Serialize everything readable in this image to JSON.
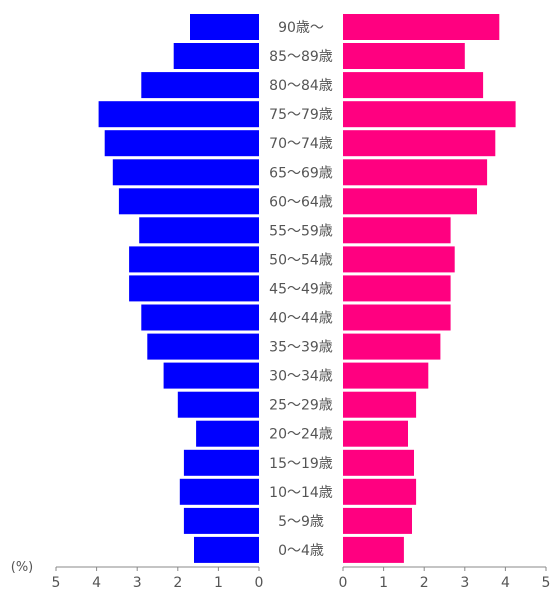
{
  "chart_data": {
    "type": "bar",
    "orientation": "horizontal",
    "layout": "population-pyramid",
    "unit": "(%)",
    "categories": [
      "90歳〜",
      "85〜89歳",
      "80〜84歳",
      "75〜79歳",
      "70〜74歳",
      "65〜69歳",
      "60〜64歳",
      "55〜59歳",
      "50〜54歳",
      "45〜49歳",
      "40〜44歳",
      "35〜39歳",
      "30〜34歳",
      "25〜29歳",
      "20〜24歳",
      "15〜19歳",
      "10〜14歳",
      "5〜9歳",
      "0〜4歳"
    ],
    "series": [
      {
        "side": "left",
        "color": "#0000ff",
        "values": [
          1.7,
          2.1,
          2.9,
          3.95,
          3.8,
          3.6,
          3.45,
          2.95,
          3.2,
          3.2,
          2.9,
          2.75,
          2.35,
          2.0,
          1.55,
          1.85,
          1.95,
          1.85,
          1.6
        ]
      },
      {
        "side": "right",
        "color": "#ff0080",
        "values": [
          3.85,
          3.0,
          3.45,
          4.25,
          3.75,
          3.55,
          3.3,
          2.65,
          2.75,
          2.65,
          2.65,
          2.4,
          2.1,
          1.8,
          1.6,
          1.75,
          1.8,
          1.7,
          1.5
        ]
      }
    ],
    "xlim": [
      0,
      5
    ],
    "left_ticks": [
      "5",
      "4",
      "3",
      "2",
      "1",
      "0"
    ],
    "right_ticks": [
      "0",
      "1",
      "2",
      "3",
      "4",
      "5"
    ],
    "grid": false,
    "title": "",
    "xlabel": "",
    "ylabel": ""
  }
}
